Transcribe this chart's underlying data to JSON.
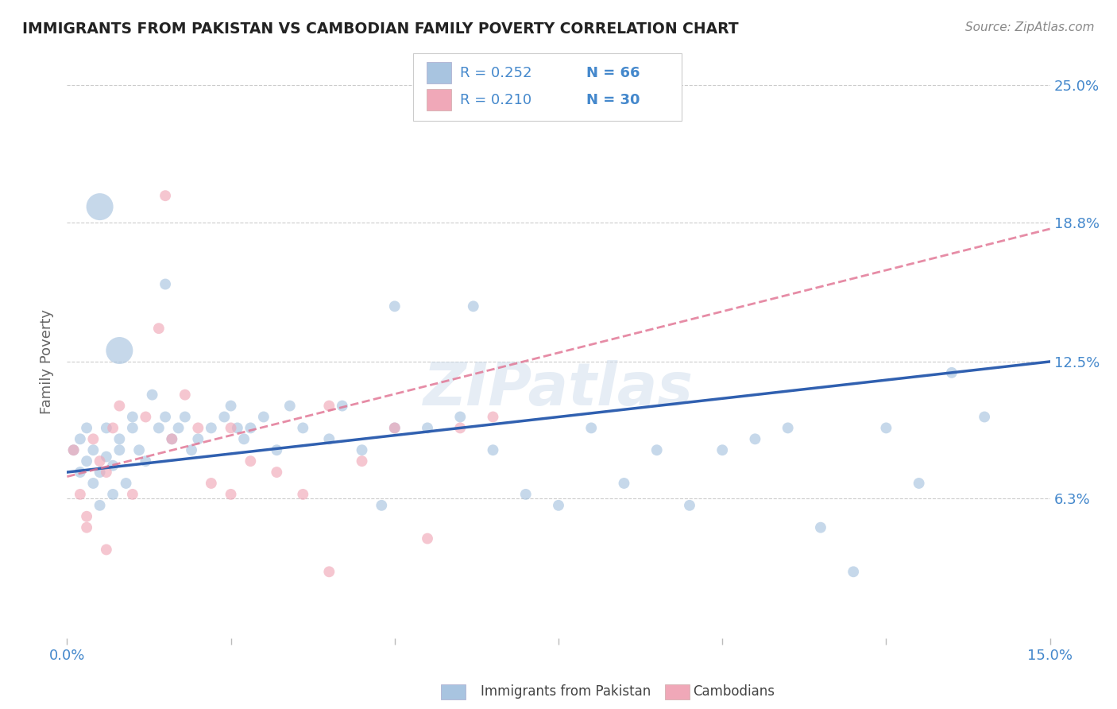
{
  "title": "IMMIGRANTS FROM PAKISTAN VS CAMBODIAN FAMILY POVERTY CORRELATION CHART",
  "source": "Source: ZipAtlas.com",
  "ylabel": "Family Poverty",
  "xlim": [
    0.0,
    0.15
  ],
  "ylim": [
    0.0,
    0.25
  ],
  "ytick_vals": [
    0.063,
    0.125,
    0.188,
    0.25
  ],
  "ytick_labels": [
    "6.3%",
    "12.5%",
    "18.8%",
    "25.0%"
  ],
  "legend_r1": "R = 0.252",
  "legend_n1": "N = 66",
  "legend_r2": "R = 0.210",
  "legend_n2": "N = 30",
  "legend_label1": "Immigrants from Pakistan",
  "legend_label2": "Cambodians",
  "watermark": "ZIPatlas",
  "blue_color": "#a8c4e0",
  "pink_color": "#f0a8b8",
  "blue_line_color": "#3060b0",
  "pink_line_color": "#e07090",
  "blue_scatter_x": [
    0.001,
    0.002,
    0.002,
    0.003,
    0.003,
    0.004,
    0.004,
    0.005,
    0.005,
    0.006,
    0.006,
    0.007,
    0.007,
    0.008,
    0.008,
    0.009,
    0.01,
    0.01,
    0.011,
    0.012,
    0.013,
    0.014,
    0.015,
    0.016,
    0.017,
    0.018,
    0.019,
    0.02,
    0.022,
    0.024,
    0.025,
    0.026,
    0.027,
    0.028,
    0.03,
    0.032,
    0.034,
    0.036,
    0.04,
    0.042,
    0.045,
    0.048,
    0.05,
    0.055,
    0.06,
    0.062,
    0.065,
    0.07,
    0.075,
    0.08,
    0.085,
    0.09,
    0.095,
    0.1,
    0.105,
    0.11,
    0.115,
    0.12,
    0.125,
    0.13,
    0.135,
    0.14,
    0.005,
    0.008,
    0.015,
    0.05
  ],
  "blue_scatter_y": [
    0.085,
    0.09,
    0.075,
    0.08,
    0.095,
    0.085,
    0.07,
    0.075,
    0.06,
    0.082,
    0.095,
    0.078,
    0.065,
    0.09,
    0.085,
    0.07,
    0.1,
    0.095,
    0.085,
    0.08,
    0.11,
    0.095,
    0.1,
    0.09,
    0.095,
    0.1,
    0.085,
    0.09,
    0.095,
    0.1,
    0.105,
    0.095,
    0.09,
    0.095,
    0.1,
    0.085,
    0.105,
    0.095,
    0.09,
    0.105,
    0.085,
    0.06,
    0.095,
    0.095,
    0.1,
    0.15,
    0.085,
    0.065,
    0.06,
    0.095,
    0.07,
    0.085,
    0.06,
    0.085,
    0.09,
    0.095,
    0.05,
    0.03,
    0.095,
    0.07,
    0.12,
    0.1,
    0.195,
    0.13,
    0.16,
    0.15
  ],
  "blue_scatter_s": [
    100,
    100,
    100,
    100,
    100,
    100,
    100,
    100,
    100,
    100,
    100,
    100,
    100,
    100,
    100,
    100,
    100,
    100,
    100,
    100,
    100,
    100,
    100,
    100,
    100,
    100,
    100,
    100,
    100,
    100,
    100,
    100,
    100,
    100,
    100,
    100,
    100,
    100,
    100,
    100,
    100,
    100,
    100,
    100,
    100,
    100,
    100,
    100,
    100,
    100,
    100,
    100,
    100,
    100,
    100,
    100,
    100,
    100,
    100,
    100,
    100,
    100,
    600,
    600,
    100,
    100
  ],
  "pink_scatter_x": [
    0.001,
    0.002,
    0.003,
    0.004,
    0.005,
    0.006,
    0.007,
    0.008,
    0.01,
    0.012,
    0.014,
    0.016,
    0.018,
    0.02,
    0.022,
    0.025,
    0.028,
    0.032,
    0.036,
    0.04,
    0.045,
    0.05,
    0.055,
    0.06,
    0.065,
    0.003,
    0.006,
    0.015,
    0.025,
    0.04
  ],
  "pink_scatter_y": [
    0.085,
    0.065,
    0.055,
    0.09,
    0.08,
    0.075,
    0.095,
    0.105,
    0.065,
    0.1,
    0.14,
    0.09,
    0.11,
    0.095,
    0.07,
    0.095,
    0.08,
    0.075,
    0.065,
    0.105,
    0.08,
    0.095,
    0.045,
    0.095,
    0.1,
    0.05,
    0.04,
    0.2,
    0.065,
    0.03
  ],
  "pink_scatter_s": [
    100,
    100,
    100,
    100,
    100,
    100,
    100,
    100,
    100,
    100,
    100,
    100,
    100,
    100,
    100,
    100,
    100,
    100,
    100,
    100,
    100,
    100,
    100,
    100,
    100,
    100,
    100,
    100,
    100,
    100
  ],
  "blue_trendline": [
    0.0,
    0.15,
    0.075,
    0.125
  ],
  "pink_trendline": [
    0.0,
    0.15,
    0.073,
    0.185
  ],
  "background_color": "#ffffff",
  "grid_color": "#cccccc"
}
